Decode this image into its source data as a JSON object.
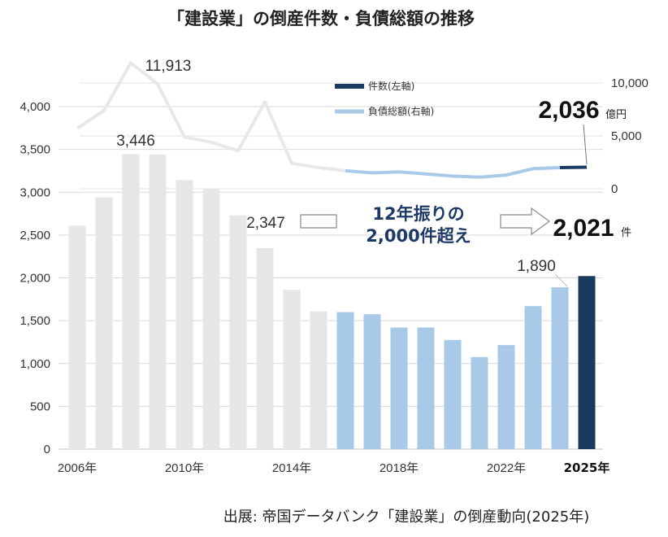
{
  "chart_data": {
    "type": "bar",
    "title": "「建設業」の倒産件数・負債総額の推移",
    "categories": [
      "2006",
      "2007",
      "2008",
      "2009",
      "2010",
      "2011",
      "2012",
      "2013",
      "2014",
      "2015",
      "2016",
      "2017",
      "2018",
      "2019",
      "2020",
      "2021",
      "2022",
      "2023",
      "2024",
      "2025"
    ],
    "x_tick_labels": [
      "2006年",
      "2010年",
      "2014年",
      "2018年",
      "2022年",
      "2025年"
    ],
    "series": [
      {
        "name": "件数(左軸)",
        "type": "bar",
        "axis": "left",
        "values": [
          2610,
          2940,
          3446,
          3440,
          3140,
          3040,
          2730,
          2347,
          1860,
          1610,
          1600,
          1575,
          1420,
          1420,
          1275,
          1075,
          1215,
          1670,
          1890,
          2021
        ]
      },
      {
        "name": "負債総額(右軸)",
        "type": "line",
        "axis": "right",
        "values": [
          5700,
          7400,
          11913,
          9900,
          4900,
          4400,
          3600,
          8200,
          2400,
          2000,
          1700,
          1500,
          1600,
          1400,
          1200,
          1100,
          1300,
          1900,
          2000,
          2036
        ]
      }
    ],
    "left_axis": {
      "ylim": [
        0,
        4000
      ],
      "ticks": [
        "0",
        "500",
        "1,000",
        "1,500",
        "2,000",
        "2,500",
        "3,000",
        "3,500",
        "4,000"
      ]
    },
    "right_axis": {
      "ylim": [
        0,
        10000
      ],
      "ticks": [
        "0",
        "5,000",
        "10,000"
      ]
    },
    "colors": {
      "bar_past": "#e6e6e6",
      "bar_recent": "#a9c9e8",
      "bar_current": "#1b3a60",
      "line_past": "#e8e8e8",
      "line_recent": "#a9c9e8",
      "line_current": "#1b3a60",
      "callout_text": "#1d3a66"
    },
    "legend_position": "top-right",
    "annotations": {
      "bar_2008": "3,446",
      "bar_2013": "2,347",
      "bar_2024": "1,890",
      "bar_2025": "2,021",
      "bar_2025_unit": "件",
      "line_2008": "11,913",
      "line_2025": "2,036",
      "line_2025_unit": "億円",
      "callout_line1": "12年振りの",
      "callout_line2": "2,000件超え"
    },
    "source": "出展: 帝国データバンク「建設業」の倒産動向(2025年)"
  }
}
